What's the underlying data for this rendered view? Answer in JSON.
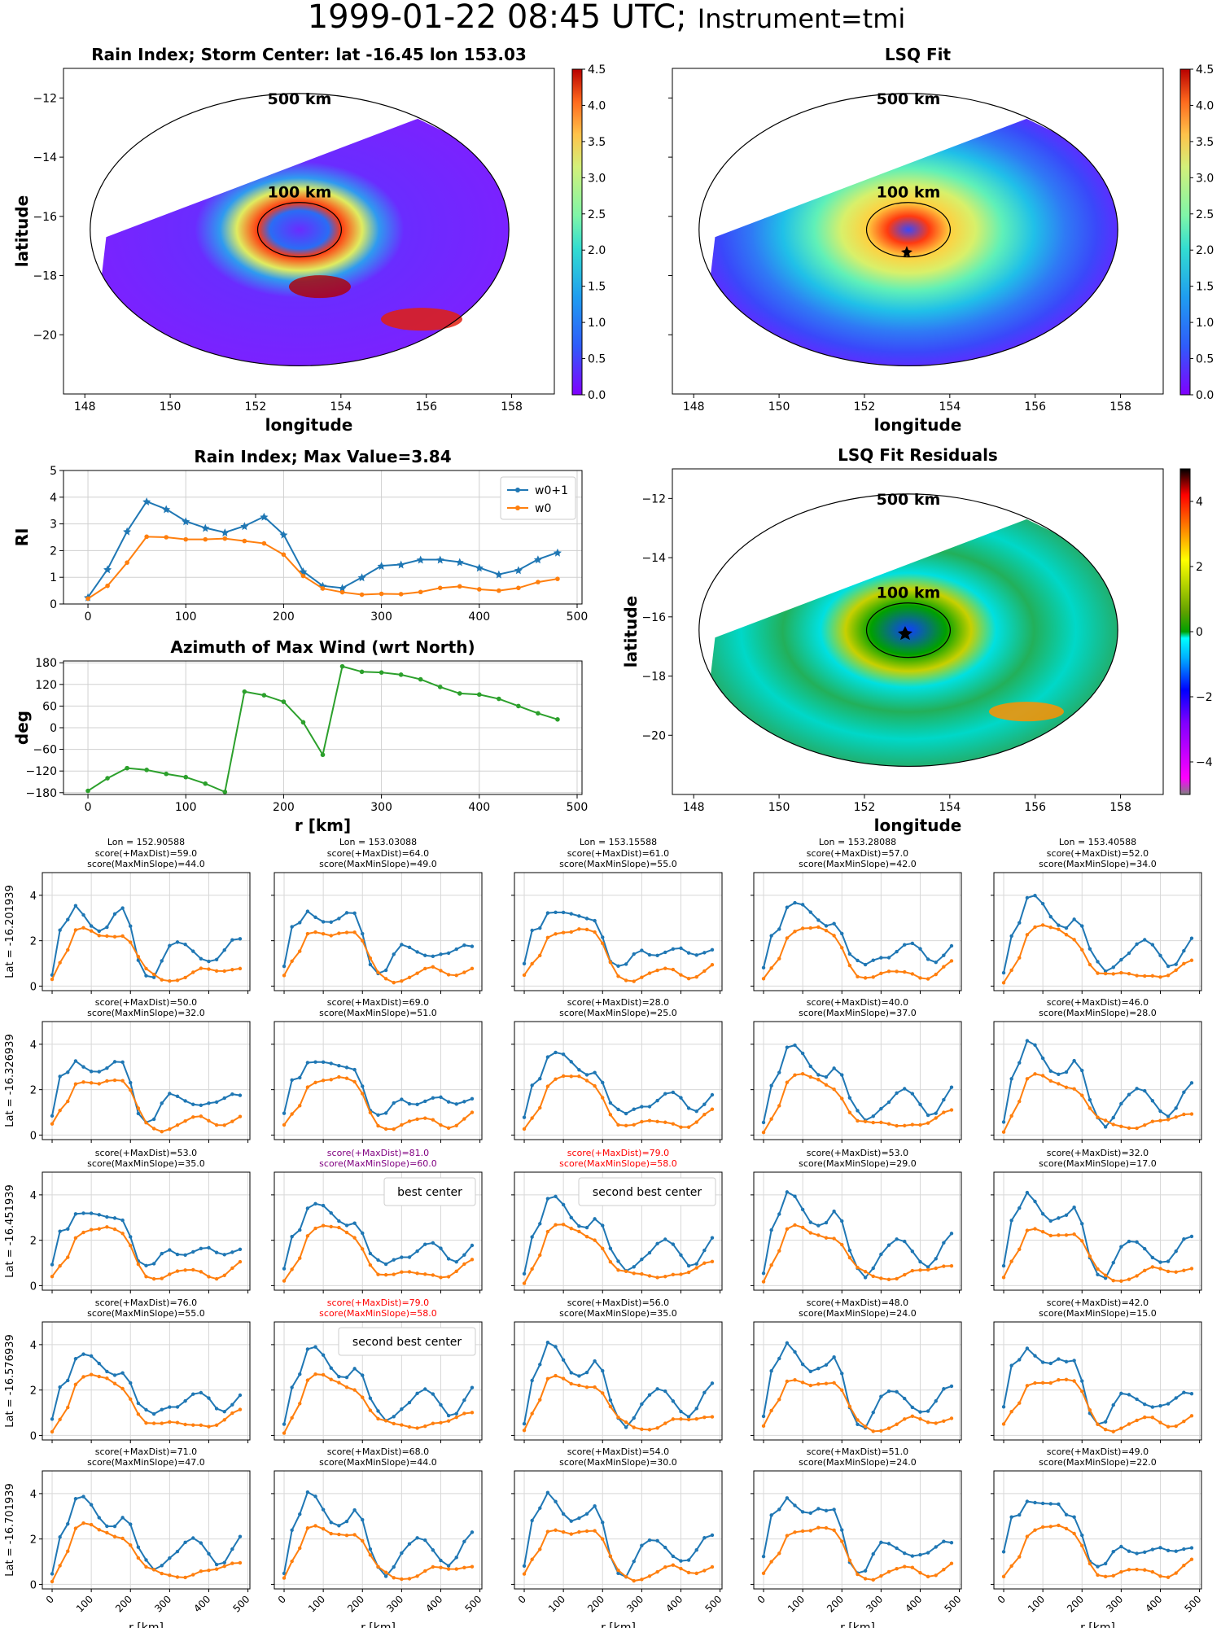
{
  "suptitle": {
    "main": "1999-01-22 08:45 UTC;",
    "sub": "Instrument=tmi"
  },
  "colors": {
    "w0p1": "#1f77b4",
    "w0": "#ff7f0e",
    "azimuth": "#2ca02c",
    "purple": "#800080",
    "red": "#ff0000"
  },
  "maps": [
    {
      "key": "ri_map",
      "title": "Rain Index; Storm Center: lat -16.45 lon 153.03",
      "xlabel": "longitude",
      "ylabel": "latitude",
      "xticks": [
        "148",
        "150",
        "152",
        "154",
        "156",
        "158"
      ],
      "yticks": [
        "−12",
        "−14",
        "−16",
        "−18",
        "−20"
      ],
      "ring_labels": [
        "500 km",
        "100 km"
      ],
      "colorbar": {
        "cmap": "rainbow",
        "ticks": [
          "0.0",
          "0.5",
          "1.0",
          "1.5",
          "2.0",
          "2.5",
          "3.0",
          "3.5",
          "4.0",
          "4.5"
        ]
      }
    },
    {
      "key": "lsq_map",
      "title": "LSQ Fit",
      "xlabel": "longitude",
      "ylabel": "",
      "xticks": [
        "148",
        "150",
        "152",
        "154",
        "156",
        "158"
      ],
      "yticks": [],
      "ring_labels": [
        "500 km",
        "100 km"
      ],
      "colorbar": {
        "cmap": "rainbow",
        "ticks": [
          "0.0",
          "0.5",
          "1.0",
          "1.5",
          "2.0",
          "2.5",
          "3.0",
          "3.5",
          "4.0",
          "4.5"
        ]
      }
    },
    {
      "key": "res_map",
      "title": "LSQ Fit Residuals",
      "xlabel": "longitude",
      "ylabel": "latitude",
      "xticks": [
        "148",
        "150",
        "152",
        "154",
        "156",
        "158"
      ],
      "yticks": [
        "−12",
        "−14",
        "−16",
        "−18",
        "−20"
      ],
      "ring_labels": [
        "500 km",
        "100 km"
      ],
      "colorbar": {
        "cmap": "diverging",
        "ticks": [
          "4",
          "2",
          "0",
          "−2",
          "−4"
        ]
      }
    }
  ],
  "chart_data": [
    {
      "type": "line",
      "title": "Rain Index; Max Value=3.84",
      "xlabel": "",
      "ylabel": "RI",
      "xlim": [
        -25,
        505
      ],
      "ylim": [
        0,
        5
      ],
      "legend": "top-right",
      "grid": true,
      "xticks": [
        "0",
        "100",
        "200",
        "300",
        "400",
        "500"
      ],
      "yticks": [
        "0",
        "1",
        "2",
        "3",
        "4",
        "5"
      ],
      "x": [
        0,
        20,
        40,
        60,
        80,
        100,
        120,
        140,
        160,
        180,
        200,
        220,
        240,
        260,
        280,
        300,
        320,
        340,
        360,
        380,
        400,
        420,
        440,
        460,
        480
      ],
      "series": [
        {
          "name": "w0+1",
          "values": [
            0.25,
            1.3,
            2.72,
            3.84,
            3.55,
            3.1,
            2.85,
            2.68,
            2.92,
            3.27,
            2.6,
            1.22,
            0.68,
            0.6,
            1.0,
            1.43,
            1.48,
            1.66,
            1.66,
            1.57,
            1.36,
            1.11,
            1.27,
            1.67,
            1.93
          ]
        },
        {
          "name": "w0",
          "values": [
            0.2,
            0.68,
            1.55,
            2.52,
            2.5,
            2.42,
            2.42,
            2.45,
            2.36,
            2.27,
            1.85,
            1.05,
            0.58,
            0.44,
            0.35,
            0.38,
            0.37,
            0.45,
            0.6,
            0.66,
            0.55,
            0.5,
            0.6,
            0.82,
            0.94
          ]
        }
      ]
    },
    {
      "type": "line",
      "title": "Azimuth of Max Wind (wrt North)",
      "xlabel": "r [km]",
      "ylabel": "deg",
      "xlim": [
        -25,
        505
      ],
      "ylim": [
        -185,
        185
      ],
      "grid": true,
      "xticks": [
        "0",
        "100",
        "200",
        "300",
        "400",
        "500"
      ],
      "yticks": [
        "180",
        "120",
        "60",
        "0",
        "−60",
        "−120",
        "−180"
      ],
      "x": [
        0,
        20,
        40,
        60,
        80,
        100,
        120,
        140,
        160,
        180,
        200,
        220,
        240,
        260,
        280,
        300,
        320,
        340,
        360,
        380,
        400,
        420,
        440,
        460,
        480
      ],
      "series": [
        {
          "values": [
            -175,
            -140,
            -112,
            -117,
            -128,
            -137,
            -155,
            -178,
            100,
            90,
            72,
            15,
            -75,
            170,
            155,
            153,
            147,
            134,
            113,
            95,
            92,
            80,
            60,
            40,
            23
          ]
        }
      ]
    }
  ],
  "grid": {
    "lons": [
      "Lon = 152.90588",
      "Lon = 153.03088",
      "Lon = 153.15588",
      "Lon = 153.28088",
      "Lon = 153.40588"
    ],
    "lats": [
      "Lat = -16.201939",
      "Lat = -16.326939",
      "Lat = -16.451939",
      "Lat = -16.576939",
      "Lat = -16.701939"
    ],
    "yticks": [
      "0",
      "2",
      "4"
    ],
    "xticks": [
      "0",
      "100",
      "200",
      "300",
      "400",
      "500"
    ],
    "xlabel": "r [km]",
    "cells": [
      [
        {
          "t1": "score(+MaxDist)=59.0",
          "t2": "score(MaxMinSlope)=44.0",
          "c": "black"
        },
        {
          "t1": "score(+MaxDist)=64.0",
          "t2": "score(MaxMinSlope)=49.0",
          "c": "black"
        },
        {
          "t1": "score(+MaxDist)=61.0",
          "t2": "score(MaxMinSlope)=55.0",
          "c": "black"
        },
        {
          "t1": "score(+MaxDist)=57.0",
          "t2": "score(MaxMinSlope)=42.0",
          "c": "black"
        },
        {
          "t1": "score(+MaxDist)=52.0",
          "t2": "score(MaxMinSlope)=34.0",
          "c": "black"
        }
      ],
      [
        {
          "t1": "score(+MaxDist)=50.0",
          "t2": "score(MaxMinSlope)=32.0",
          "c": "black"
        },
        {
          "t1": "score(+MaxDist)=69.0",
          "t2": "score(MaxMinSlope)=51.0",
          "c": "black"
        },
        {
          "t1": "score(+MaxDist)=28.0",
          "t2": "score(MaxMinSlope)=25.0",
          "c": "black"
        },
        {
          "t1": "score(+MaxDist)=40.0",
          "t2": "score(MaxMinSlope)=37.0",
          "c": "black"
        },
        {
          "t1": "score(+MaxDist)=46.0",
          "t2": "score(MaxMinSlope)=28.0",
          "c": "black"
        }
      ],
      [
        {
          "t1": "score(+MaxDist)=53.0",
          "t2": "score(MaxMinSlope)=35.0",
          "c": "black"
        },
        {
          "t1": "score(+MaxDist)=81.0",
          "t2": "score(MaxMinSlope)=60.0",
          "c": "purple",
          "box": "best center"
        },
        {
          "t1": "score(+MaxDist)=79.0",
          "t2": "score(MaxMinSlope)=58.0",
          "c": "red",
          "box": "second best center"
        },
        {
          "t1": "score(+MaxDist)=53.0",
          "t2": "score(MaxMinSlope)=29.0",
          "c": "black"
        },
        {
          "t1": "score(+MaxDist)=32.0",
          "t2": "score(MaxMinSlope)=17.0",
          "c": "black"
        }
      ],
      [
        {
          "t1": "score(+MaxDist)=76.0",
          "t2": "score(MaxMinSlope)=55.0",
          "c": "black"
        },
        {
          "t1": "score(+MaxDist)=79.0",
          "t2": "score(MaxMinSlope)=58.0",
          "c": "red",
          "box": "second best center"
        },
        {
          "t1": "score(+MaxDist)=56.0",
          "t2": "score(MaxMinSlope)=35.0",
          "c": "black"
        },
        {
          "t1": "score(+MaxDist)=48.0",
          "t2": "score(MaxMinSlope)=24.0",
          "c": "black"
        },
        {
          "t1": "score(+MaxDist)=42.0",
          "t2": "score(MaxMinSlope)=15.0",
          "c": "black"
        }
      ],
      [
        {
          "t1": "score(+MaxDist)=71.0",
          "t2": "score(MaxMinSlope)=47.0",
          "c": "black"
        },
        {
          "t1": "score(+MaxDist)=68.0",
          "t2": "score(MaxMinSlope)=44.0",
          "c": "black"
        },
        {
          "t1": "score(+MaxDist)=54.0",
          "t2": "score(MaxMinSlope)=30.0",
          "c": "black"
        },
        {
          "t1": "score(+MaxDist)=51.0",
          "t2": "score(MaxMinSlope)=24.0",
          "c": "black"
        },
        {
          "t1": "score(+MaxDist)=49.0",
          "t2": "score(MaxMinSlope)=22.0",
          "c": "black"
        }
      ]
    ]
  }
}
